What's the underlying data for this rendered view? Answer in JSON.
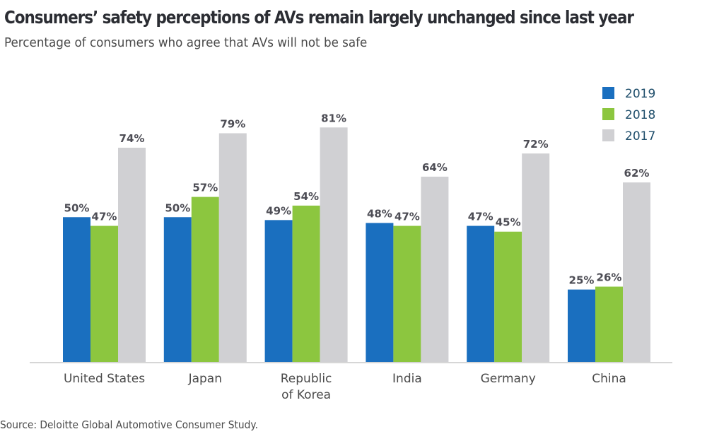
{
  "header": {
    "title": "Consumers’ safety perceptions of AVs remain largely unchanged since last year",
    "subtitle": "Percentage of consumers who agree that AVs will not be safe"
  },
  "footer": {
    "source": "Source: Deloitte Global Automotive Consumer Study."
  },
  "colors": {
    "2019": "#1a6fbf",
    "2018": "#8cc63f",
    "2017": "#d0d0d3",
    "axis": "#c8c8c8"
  },
  "chart_data": {
    "type": "bar",
    "title": "Consumers’ safety perceptions of AVs remain largely unchanged since last year",
    "subtitle": "Percentage of consumers who agree that AVs will not be safe",
    "xlabel": "",
    "ylabel": "",
    "ylim": [
      0,
      100
    ],
    "grid": false,
    "legend_position": "top-right",
    "categories": [
      [
        "United States"
      ],
      [
        "Japan"
      ],
      [
        "Republic",
        "of Korea"
      ],
      [
        "India"
      ],
      [
        "Germany"
      ],
      [
        "China"
      ]
    ],
    "series": [
      {
        "name": "2019",
        "color": "#1a6fbf",
        "values": [
          50,
          50,
          49,
          48,
          47,
          25
        ]
      },
      {
        "name": "2018",
        "color": "#8cc63f",
        "values": [
          47,
          57,
          54,
          47,
          45,
          26
        ]
      },
      {
        "name": "2017",
        "color": "#d0d0d3",
        "values": [
          74,
          79,
          81,
          64,
          72,
          62
        ]
      }
    ],
    "value_suffix": "%"
  }
}
